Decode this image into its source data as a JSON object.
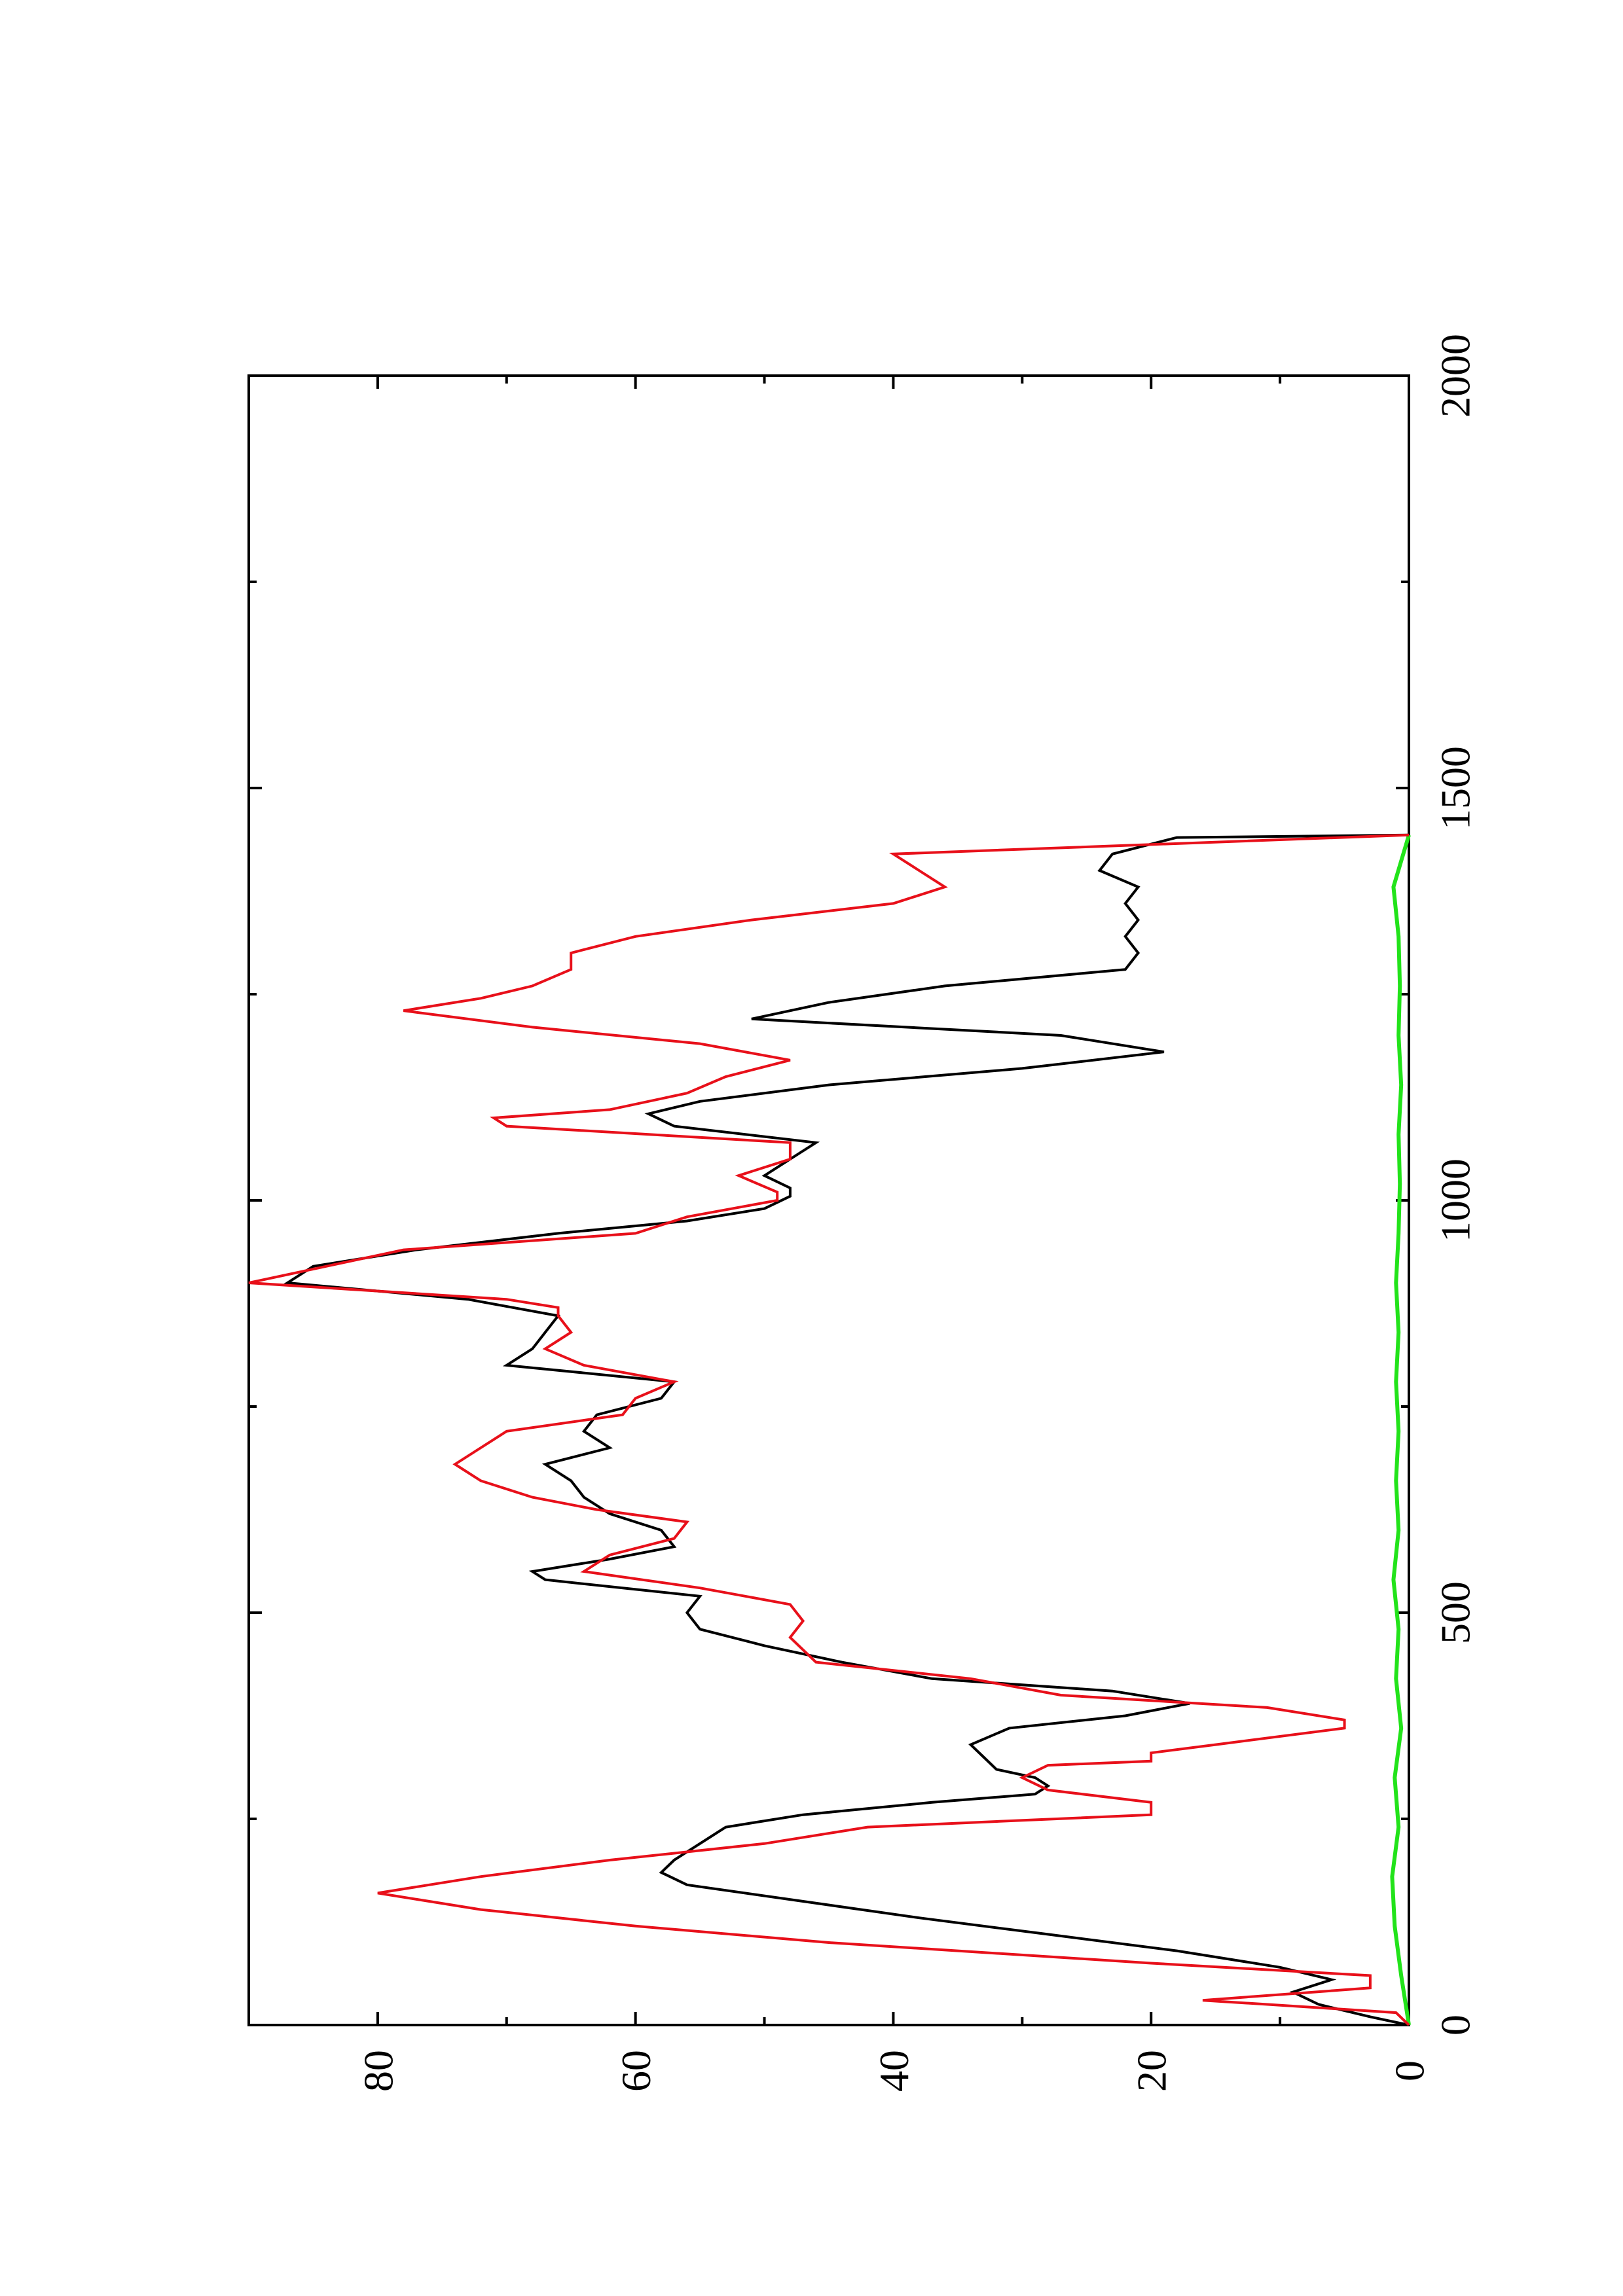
{
  "chart_data": {
    "type": "line",
    "title": "",
    "xlabel": "",
    "ylabel": "",
    "xlim": [
      0,
      2000
    ],
    "ylim": [
      0,
      90
    ],
    "x_ticks": [
      0,
      500,
      1000,
      1500,
      2000
    ],
    "x_minor_ticks": [
      250,
      750,
      1250,
      1750
    ],
    "y_ticks": [
      0,
      20,
      40,
      60,
      80
    ],
    "y_minor_ticks": [
      10,
      30,
      50,
      70
    ],
    "orientation": "rotated 90 degrees counter-clockwise (page landscape)",
    "grid": false,
    "legend": "none",
    "series": [
      {
        "color": "#000000",
        "points": [
          [
            0,
            0
          ],
          [
            10,
            3
          ],
          [
            25,
            7
          ],
          [
            40,
            9
          ],
          [
            55,
            6
          ],
          [
            70,
            10
          ],
          [
            90,
            18
          ],
          [
            110,
            28
          ],
          [
            130,
            38
          ],
          [
            150,
            47
          ],
          [
            170,
            56
          ],
          [
            185,
            58
          ],
          [
            200,
            57
          ],
          [
            220,
            55
          ],
          [
            240,
            53
          ],
          [
            255,
            47
          ],
          [
            270,
            37
          ],
          [
            280,
            29
          ],
          [
            290,
            28
          ],
          [
            300,
            29
          ],
          [
            310,
            32
          ],
          [
            325,
            33
          ],
          [
            340,
            34
          ],
          [
            360,
            31
          ],
          [
            375,
            22
          ],
          [
            390,
            17
          ],
          [
            405,
            23
          ],
          [
            420,
            37
          ],
          [
            440,
            44
          ],
          [
            460,
            50
          ],
          [
            480,
            55
          ],
          [
            500,
            56
          ],
          [
            520,
            55
          ],
          [
            540,
            67
          ],
          [
            550,
            68
          ],
          [
            565,
            62
          ],
          [
            580,
            57
          ],
          [
            600,
            58
          ],
          [
            620,
            62
          ],
          [
            640,
            64
          ],
          [
            660,
            65
          ],
          [
            680,
            67
          ],
          [
            700,
            62
          ],
          [
            720,
            64
          ],
          [
            740,
            63
          ],
          [
            760,
            58
          ],
          [
            780,
            57
          ],
          [
            800,
            70
          ],
          [
            820,
            68
          ],
          [
            840,
            67
          ],
          [
            860,
            66
          ],
          [
            880,
            73
          ],
          [
            900,
            87
          ],
          [
            920,
            85
          ],
          [
            940,
            77
          ],
          [
            960,
            66
          ],
          [
            975,
            56
          ],
          [
            990,
            50
          ],
          [
            1005,
            48
          ],
          [
            1015,
            48
          ],
          [
            1030,
            50
          ],
          [
            1050,
            48
          ],
          [
            1070,
            46
          ],
          [
            1090,
            57
          ],
          [
            1105,
            59
          ],
          [
            1120,
            55
          ],
          [
            1140,
            45
          ],
          [
            1160,
            30
          ],
          [
            1180,
            19
          ],
          [
            1200,
            27
          ],
          [
            1220,
            51
          ],
          [
            1240,
            45
          ],
          [
            1260,
            36
          ],
          [
            1280,
            22
          ],
          [
            1300,
            21
          ],
          [
            1320,
            22
          ],
          [
            1340,
            21
          ],
          [
            1360,
            22
          ],
          [
            1380,
            21
          ],
          [
            1400,
            24
          ],
          [
            1420,
            23
          ],
          [
            1440,
            18
          ],
          [
            1443,
            0
          ]
        ]
      },
      {
        "color": "#e8101a",
        "points": [
          [
            0,
            0
          ],
          [
            15,
            1
          ],
          [
            30,
            16
          ],
          [
            45,
            3
          ],
          [
            60,
            3
          ],
          [
            75,
            20
          ],
          [
            100,
            45
          ],
          [
            120,
            60
          ],
          [
            140,
            72
          ],
          [
            160,
            80
          ],
          [
            180,
            72
          ],
          [
            200,
            62
          ],
          [
            220,
            50
          ],
          [
            240,
            42
          ],
          [
            255,
            20
          ],
          [
            270,
            20
          ],
          [
            285,
            28
          ],
          [
            300,
            30
          ],
          [
            315,
            28
          ],
          [
            320,
            20
          ],
          [
            330,
            20
          ],
          [
            340,
            15
          ],
          [
            360,
            5
          ],
          [
            370,
            5
          ],
          [
            385,
            11
          ],
          [
            400,
            27
          ],
          [
            420,
            34
          ],
          [
            440,
            46
          ],
          [
            455,
            47
          ],
          [
            470,
            48
          ],
          [
            490,
            47
          ],
          [
            510,
            48
          ],
          [
            530,
            55
          ],
          [
            550,
            64
          ],
          [
            570,
            62
          ],
          [
            590,
            57
          ],
          [
            610,
            56
          ],
          [
            625,
            63
          ],
          [
            640,
            68
          ],
          [
            660,
            72
          ],
          [
            680,
            74
          ],
          [
            700,
            72
          ],
          [
            720,
            70
          ],
          [
            740,
            61
          ],
          [
            760,
            60
          ],
          [
            780,
            57
          ],
          [
            800,
            64
          ],
          [
            820,
            67
          ],
          [
            840,
            65
          ],
          [
            860,
            66
          ],
          [
            870,
            66
          ],
          [
            880,
            70
          ],
          [
            900,
            90
          ],
          [
            920,
            84
          ],
          [
            940,
            78
          ],
          [
            960,
            60
          ],
          [
            980,
            56
          ],
          [
            1000,
            49
          ],
          [
            1010,
            49
          ],
          [
            1030,
            52
          ],
          [
            1050,
            48
          ],
          [
            1070,
            48
          ],
          [
            1090,
            70
          ],
          [
            1100,
            71
          ],
          [
            1110,
            62
          ],
          [
            1130,
            56
          ],
          [
            1150,
            53
          ],
          [
            1170,
            48
          ],
          [
            1190,
            55
          ],
          [
            1210,
            68
          ],
          [
            1230,
            78
          ],
          [
            1245,
            72
          ],
          [
            1260,
            68
          ],
          [
            1280,
            65
          ],
          [
            1300,
            65
          ],
          [
            1320,
            60
          ],
          [
            1340,
            51
          ],
          [
            1360,
            40
          ],
          [
            1380,
            36
          ],
          [
            1400,
            38
          ],
          [
            1420,
            40
          ],
          [
            1443,
            0
          ]
        ]
      },
      {
        "color": "#22e31a",
        "points": [
          [
            0,
            0
          ],
          [
            60,
            0.6
          ],
          [
            120,
            1.1
          ],
          [
            180,
            1.3
          ],
          [
            240,
            0.8
          ],
          [
            300,
            1.1
          ],
          [
            360,
            0.6
          ],
          [
            420,
            1.0
          ],
          [
            480,
            0.8
          ],
          [
            540,
            1.2
          ],
          [
            600,
            0.8
          ],
          [
            660,
            1.0
          ],
          [
            720,
            0.8
          ],
          [
            780,
            1.0
          ],
          [
            840,
            0.8
          ],
          [
            900,
            1.0
          ],
          [
            960,
            0.8
          ],
          [
            1020,
            0.7
          ],
          [
            1080,
            0.8
          ],
          [
            1140,
            0.6
          ],
          [
            1200,
            0.8
          ],
          [
            1260,
            0.7
          ],
          [
            1320,
            0.8
          ],
          [
            1380,
            1.2
          ],
          [
            1443,
            0
          ]
        ]
      }
    ]
  }
}
